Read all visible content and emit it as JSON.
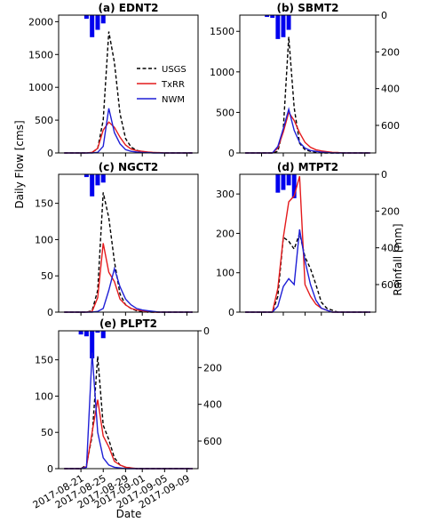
{
  "figure": {
    "xlabel": "Date",
    "ylabel_left": "Daily Flow [cms]",
    "ylabel_right": "Rainfall [mm]"
  },
  "legend": [
    {
      "name": "USGS",
      "color": "#000000",
      "dash": true
    },
    {
      "name": "TxRR",
      "color": "#e41a1c",
      "dash": false
    },
    {
      "name": "NWM",
      "color": "#1f1fd6",
      "dash": false
    }
  ],
  "colors": {
    "rain": "#0000ee"
  },
  "x_ticks": [
    "2017-08-21",
    "2017-08-25",
    "2017-08-29",
    "2017-09-01",
    "2017-09-05",
    "2017-09-09"
  ],
  "chart_data": [
    {
      "type": "line",
      "title": "(a) EDNT2",
      "x": [
        1,
        2,
        3,
        4,
        5,
        6,
        7,
        8,
        9,
        10,
        11,
        12,
        13,
        14,
        15,
        16,
        17,
        18,
        19,
        20,
        21,
        22,
        23,
        24
      ],
      "xlim": [
        0,
        25
      ],
      "ylim": [
        0,
        2100
      ],
      "yticks": [
        0,
        500,
        1000,
        1500,
        2000
      ],
      "rain_ylim": [
        0,
        750
      ],
      "rain": {
        "x": [
          5,
          6,
          7,
          8
        ],
        "values": [
          20,
          120,
          80,
          45
        ]
      },
      "series": [
        {
          "name": "USGS",
          "values": [
            0,
            0,
            0,
            0,
            0,
            5,
            70,
            500,
            1850,
            1380,
            600,
            220,
            90,
            40,
            20,
            10,
            5,
            3,
            0,
            0,
            0,
            0,
            0,
            0
          ]
        },
        {
          "name": "TxRR",
          "values": [
            0,
            0,
            0,
            0,
            0,
            10,
            70,
            350,
            470,
            390,
            240,
            120,
            60,
            35,
            25,
            15,
            8,
            5,
            0,
            0,
            0,
            0,
            0,
            0
          ]
        },
        {
          "name": "NWM",
          "values": [
            0,
            0,
            0,
            0,
            0,
            0,
            10,
            100,
            680,
            310,
            140,
            50,
            25,
            15,
            8,
            5,
            0,
            0,
            0,
            0,
            0,
            0,
            0,
            0
          ]
        }
      ]
    },
    {
      "type": "line",
      "title": "(b) SBMT2",
      "x": [
        1,
        2,
        3,
        4,
        5,
        6,
        7,
        8,
        9,
        10,
        11,
        12,
        13,
        14,
        15,
        16,
        17,
        18,
        19,
        20,
        21,
        22,
        23,
        24
      ],
      "xlim": [
        0,
        25
      ],
      "ylim": [
        0,
        1700
      ],
      "yticks": [
        0,
        500,
        1000,
        1500
      ],
      "rain_ylim": [
        0,
        750
      ],
      "rain_yticks": [
        0,
        200,
        400,
        600
      ],
      "rain": {
        "x": [
          5,
          6,
          7,
          8,
          9
        ],
        "values": [
          10,
          15,
          130,
          120,
          80
        ]
      },
      "series": [
        {
          "name": "USGS",
          "values": [
            0,
            0,
            0,
            0,
            0,
            0,
            20,
            300,
            1430,
            560,
            120,
            40,
            20,
            10,
            0,
            0,
            0,
            0,
            0,
            0,
            0,
            0,
            0,
            0
          ]
        },
        {
          "name": "TxRR",
          "values": [
            0,
            0,
            0,
            0,
            0,
            0,
            60,
            260,
            500,
            400,
            250,
            130,
            70,
            40,
            25,
            15,
            8,
            5,
            0,
            0,
            0,
            0,
            0,
            0
          ]
        },
        {
          "name": "NWM",
          "values": [
            0,
            0,
            0,
            0,
            0,
            0,
            80,
            300,
            540,
            280,
            130,
            60,
            30,
            20,
            10,
            5,
            0,
            0,
            0,
            0,
            0,
            0,
            0,
            0
          ]
        }
      ]
    },
    {
      "type": "line",
      "title": "(c) NGCT2",
      "x": [
        1,
        2,
        3,
        4,
        5,
        6,
        7,
        8,
        9,
        10,
        11,
        12,
        13,
        14,
        15,
        16,
        17,
        18,
        19,
        20,
        21,
        22,
        23,
        24
      ],
      "xlim": [
        0,
        25
      ],
      "ylim": [
        0,
        190
      ],
      "yticks": [
        0,
        50,
        100,
        150
      ],
      "rain_ylim": [
        0,
        750
      ],
      "rain": {
        "x": [
          5,
          6,
          7,
          8
        ],
        "values": [
          15,
          120,
          60,
          45
        ]
      },
      "series": [
        {
          "name": "USGS",
          "values": [
            0,
            0,
            0,
            0,
            0,
            2,
            30,
            165,
            130,
            70,
            25,
            10,
            5,
            2,
            1,
            0,
            0,
            0,
            0,
            0,
            0,
            0,
            0,
            0
          ]
        },
        {
          "name": "TxRR",
          "values": [
            0,
            0,
            0,
            0,
            0,
            1,
            20,
            95,
            55,
            42,
            18,
            10,
            5,
            3,
            2,
            1,
            0,
            0,
            0,
            0,
            0,
            0,
            0,
            0
          ]
        },
        {
          "name": "NWM",
          "values": [
            0,
            0,
            0,
            0,
            0,
            0,
            1,
            5,
            30,
            60,
            35,
            18,
            10,
            5,
            3,
            2,
            1,
            0,
            0,
            0,
            0,
            0,
            0,
            0
          ]
        }
      ]
    },
    {
      "type": "line",
      "title": "(d) MTPT2",
      "x": [
        1,
        2,
        3,
        4,
        5,
        6,
        7,
        8,
        9,
        10,
        11,
        12,
        13,
        14,
        15,
        16,
        17,
        18,
        19,
        20,
        21,
        22,
        23,
        24
      ],
      "xlim": [
        0,
        25
      ],
      "ylim": [
        0,
        350
      ],
      "yticks": [
        0,
        100,
        200,
        300
      ],
      "rain_ylim": [
        0,
        750
      ],
      "rain_yticks": [
        0,
        200,
        400,
        600
      ],
      "rain": {
        "x": [
          7,
          8,
          9,
          10
        ],
        "values": [
          100,
          85,
          60,
          130
        ]
      },
      "series": [
        {
          "name": "USGS",
          "values": [
            0,
            0,
            0,
            0,
            0,
            0,
            40,
            190,
            180,
            160,
            200,
            140,
            110,
            70,
            25,
            10,
            5,
            0,
            0,
            0,
            0,
            0,
            0,
            0
          ]
        },
        {
          "name": "TxRR",
          "values": [
            0,
            0,
            0,
            0,
            0,
            0,
            60,
            190,
            280,
            295,
            345,
            70,
            40,
            20,
            10,
            5,
            0,
            0,
            0,
            0,
            0,
            0,
            0,
            0
          ]
        },
        {
          "name": "NWM",
          "values": [
            0,
            0,
            0,
            0,
            0,
            0,
            15,
            65,
            85,
            70,
            210,
            130,
            70,
            30,
            10,
            5,
            0,
            0,
            0,
            0,
            0,
            0,
            0,
            0
          ]
        }
      ]
    },
    {
      "type": "line",
      "title": "(e) PLPT2",
      "x": [
        1,
        2,
        3,
        4,
        5,
        6,
        7,
        8,
        9,
        10,
        11,
        12,
        13,
        14,
        15,
        16,
        17,
        18,
        19,
        20,
        21,
        22,
        23,
        24
      ],
      "xlim": [
        0,
        25
      ],
      "ylim": [
        0,
        190
      ],
      "yticks": [
        0,
        50,
        100,
        150
      ],
      "rain_ylim": [
        0,
        750
      ],
      "rain_yticks": [
        0,
        200,
        400,
        600
      ],
      "rain": {
        "x": [
          4,
          5,
          6,
          7,
          8
        ],
        "values": [
          20,
          30,
          150,
          10,
          40
        ]
      },
      "series": [
        {
          "name": "USGS",
          "values": [
            0,
            0,
            0,
            0,
            5,
            45,
            155,
            60,
            40,
            15,
            5,
            2,
            1,
            0,
            0,
            0,
            0,
            0,
            0,
            0,
            0,
            0,
            0,
            0
          ]
        },
        {
          "name": "TxRR",
          "values": [
            0,
            0,
            0,
            0,
            3,
            50,
            95,
            45,
            30,
            10,
            5,
            2,
            1,
            0,
            0,
            0,
            0,
            0,
            0,
            0,
            0,
            0,
            0,
            0
          ]
        },
        {
          "name": "NWM",
          "values": [
            0,
            0,
            0,
            0,
            2,
            160,
            50,
            15,
            5,
            2,
            1,
            0,
            0,
            0,
            0,
            0,
            0,
            0,
            0,
            0,
            0,
            0,
            0,
            0
          ]
        }
      ]
    }
  ]
}
